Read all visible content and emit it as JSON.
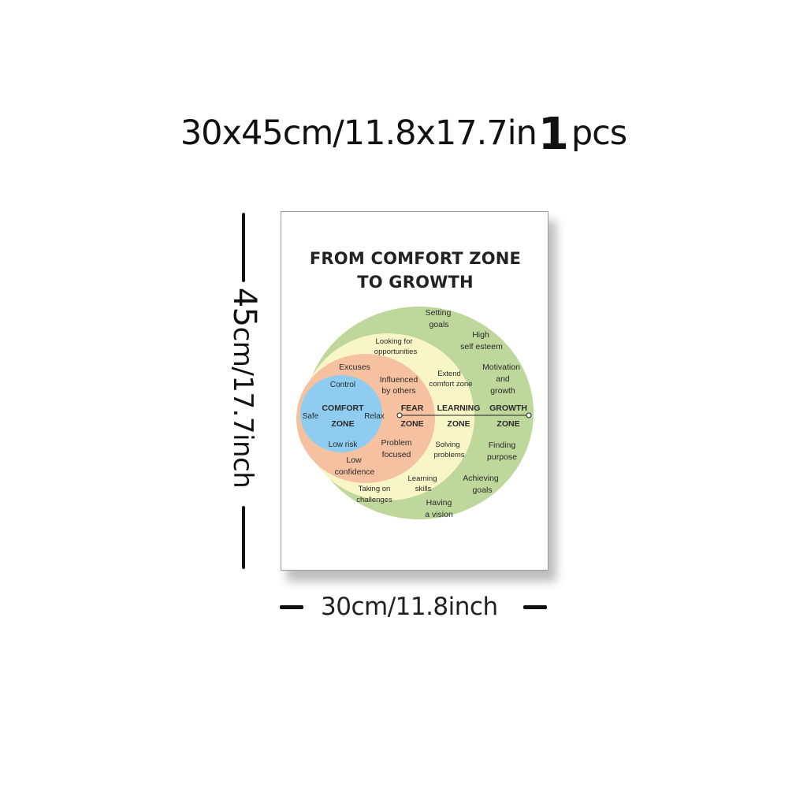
{
  "header": {
    "size_text": "30x45cm/11.8x17.7in",
    "quantity": "1",
    "unit": "pcs"
  },
  "dimensions": {
    "height_number": "45",
    "height_rest": "cm/17.7inch",
    "width_label": "30cm/11.8inch"
  },
  "poster": {
    "title_line1": "FROM COMFORT ZONE",
    "title_line2": "TO GROWTH",
    "zones": {
      "comfort": {
        "name1": "COMFORT",
        "name2": "ZONE",
        "items": [
          "Control",
          "Safe",
          "Relax",
          "Low risk"
        ]
      },
      "fear": {
        "name1": "FEAR",
        "name2": "ZONE",
        "items": [
          "Excuses",
          "Influenced",
          "by others",
          "Problem",
          "focused",
          "Low",
          "confidence"
        ]
      },
      "learning": {
        "name1": "LEARNING",
        "name2": "ZONE",
        "items": [
          "Looking for",
          "opportunities",
          "Extend",
          "comfort zone",
          "Solving",
          "problems",
          "Learning",
          "skills",
          "Taking on",
          "challenges"
        ]
      },
      "growth": {
        "name1": "GROWTH",
        "name2": "ZONE",
        "items": [
          "Setting",
          "goals",
          "High",
          "self esteem",
          "Motivation",
          "and",
          "growth",
          "Finding",
          "purpose",
          "Achieving",
          "goals",
          "Having",
          "a vision"
        ]
      }
    },
    "colors": {
      "comfort": "#8fcdf0",
      "fear": "#f5c1a0",
      "learning": "#f8f5c6",
      "growth": "#bed79b"
    }
  }
}
